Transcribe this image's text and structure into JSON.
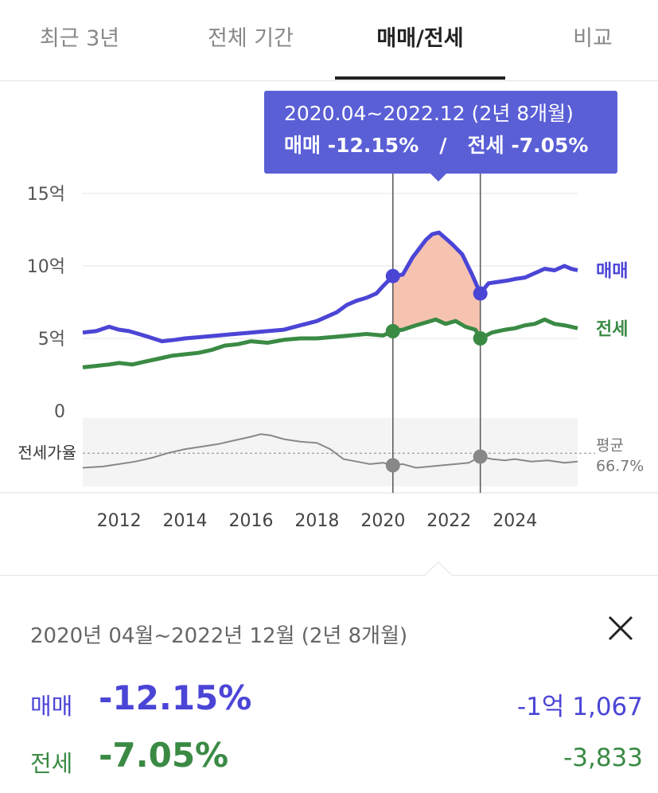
{
  "tabs": [
    {
      "label": "최근 3년",
      "active": false
    },
    {
      "label": "전체 기간",
      "active": false
    },
    {
      "label": "매매/전세",
      "active": true
    },
    {
      "label": "비교",
      "active": false
    }
  ],
  "tooltip": {
    "period": "2020.04~2022.12 (2년 8개월)",
    "sale_label": "매매",
    "sale_change": "-12.15%",
    "separator": "/",
    "jeonse_label": "전세",
    "jeonse_change": "-7.05%"
  },
  "summary": {
    "period": "2020년 04월~2022년 12월 (2년 8개월)",
    "sale": {
      "label": "매매",
      "percent": "-12.15%",
      "amount": "-1억 1,067"
    },
    "jeonse": {
      "label": "전세",
      "percent": "-7.05%",
      "amount": "-3,833"
    }
  },
  "chart_data": {
    "type": "line",
    "y_tick_labels": [
      "15억",
      "10억",
      "5억",
      "0"
    ],
    "y_ticks": [
      15,
      10,
      5,
      0
    ],
    "ylim": [
      0,
      15
    ],
    "x_tick_labels": [
      "2012",
      "2014",
      "2016",
      "2018",
      "2020",
      "2022",
      "2024"
    ],
    "x_ticks": [
      2012,
      2014,
      2016,
      2018,
      2020,
      2022,
      2024
    ],
    "xlim": [
      2010.9,
      2025.9
    ],
    "series": [
      {
        "name": "매매",
        "color": "#4b45d6",
        "x": [
          2010.9,
          2011.3,
          2011.7,
          2012.0,
          2012.3,
          2012.6,
          2012.9,
          2013.3,
          2013.7,
          2014.0,
          2014.5,
          2015.0,
          2015.5,
          2016.0,
          2016.5,
          2017.0,
          2017.5,
          2018.0,
          2018.3,
          2018.6,
          2018.9,
          2019.2,
          2019.5,
          2019.8,
          2020.0,
          2020.3,
          2020.6,
          2020.9,
          2021.1,
          2021.3,
          2021.5,
          2021.7,
          2021.9,
          2022.1,
          2022.4,
          2022.7,
          2022.95,
          2023.2,
          2023.5,
          2023.8,
          2024.0,
          2024.3,
          2024.6,
          2024.9,
          2025.2,
          2025.5,
          2025.7,
          2025.9
        ],
        "values": [
          5.4,
          5.5,
          5.8,
          5.6,
          5.5,
          5.3,
          5.1,
          4.8,
          4.9,
          5.0,
          5.1,
          5.2,
          5.3,
          5.4,
          5.5,
          5.6,
          5.9,
          6.2,
          6.5,
          6.8,
          7.3,
          7.6,
          7.8,
          8.1,
          8.6,
          9.3,
          9.4,
          10.6,
          11.2,
          11.8,
          12.2,
          12.3,
          11.9,
          11.5,
          10.8,
          9.4,
          8.1,
          8.8,
          8.9,
          9.0,
          9.1,
          9.2,
          9.5,
          9.8,
          9.7,
          10.0,
          9.8,
          9.7
        ]
      },
      {
        "name": "전세",
        "color": "#3a8a44",
        "x": [
          2010.9,
          2011.3,
          2011.7,
          2012.0,
          2012.4,
          2012.8,
          2013.2,
          2013.6,
          2014.0,
          2014.4,
          2014.8,
          2015.2,
          2015.6,
          2016.0,
          2016.5,
          2017.0,
          2017.5,
          2018.0,
          2018.5,
          2019.0,
          2019.5,
          2020.0,
          2020.3,
          2020.6,
          2021.0,
          2021.3,
          2021.6,
          2021.9,
          2022.2,
          2022.5,
          2022.8,
          2022.95,
          2023.3,
          2023.7,
          2024.0,
          2024.3,
          2024.6,
          2024.9,
          2025.2,
          2025.5,
          2025.9
        ],
        "values": [
          3.0,
          3.1,
          3.2,
          3.3,
          3.2,
          3.4,
          3.6,
          3.8,
          3.9,
          4.0,
          4.2,
          4.5,
          4.6,
          4.8,
          4.7,
          4.9,
          5.0,
          5.0,
          5.1,
          5.2,
          5.3,
          5.2,
          5.5,
          5.6,
          5.9,
          6.1,
          6.3,
          6.0,
          6.2,
          5.8,
          5.6,
          5.0,
          5.4,
          5.6,
          5.7,
          5.9,
          6.0,
          6.3,
          6.0,
          5.9,
          5.7
        ]
      },
      {
        "name": "전세가율",
        "color": "#888888",
        "x": [
          2010.9,
          2011.5,
          2012.0,
          2012.5,
          2013.0,
          2013.5,
          2014.0,
          2014.5,
          2015.0,
          2015.5,
          2016.0,
          2016.3,
          2016.6,
          2017.0,
          2017.5,
          2018.0,
          2018.4,
          2018.8,
          2019.2,
          2019.6,
          2020.0,
          2020.3,
          2020.6,
          2021.0,
          2021.4,
          2021.8,
          2022.2,
          2022.6,
          2022.95,
          2023.3,
          2023.7,
          2024.0,
          2024.5,
          2025.0,
          2025.5,
          2025.9
        ],
        "values": [
          55,
          56,
          58,
          60,
          63,
          67,
          70,
          72,
          74,
          77,
          80,
          82,
          81,
          78,
          76,
          75,
          70,
          62,
          60,
          58,
          59,
          57,
          58,
          55,
          56,
          57,
          58,
          59,
          64,
          62,
          61,
          62,
          60,
          61,
          59,
          60
        ]
      }
    ],
    "ratio_label": "전세가율",
    "ratio_avg_label": "평균",
    "ratio_avg_value": "66.7%",
    "ratio_avg": 66.7,
    "ratio_ylim": [
      40,
      95
    ],
    "selection": {
      "start": 2020.3,
      "end": 2022.95
    },
    "legend": [
      "매매",
      "전세"
    ],
    "grid": true
  }
}
